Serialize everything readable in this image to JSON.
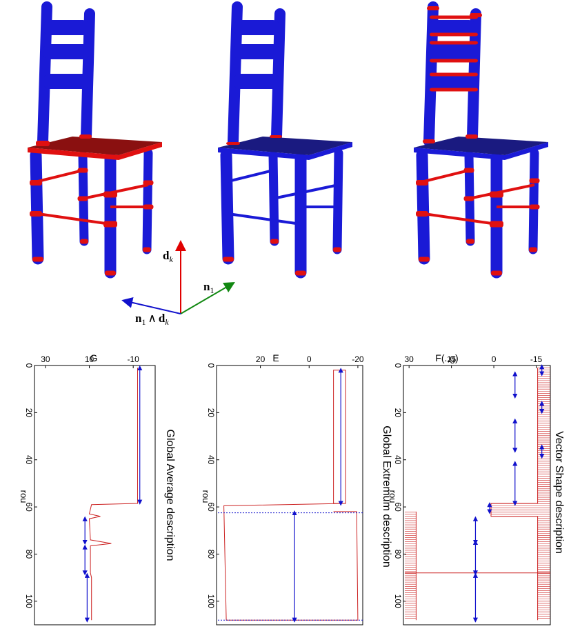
{
  "axis_labels": {
    "d": "d",
    "d_sub": "k",
    "n": "n",
    "n_sub": "1",
    "wedge": "n",
    "wedge_sub": "1",
    "wedge_op": "∧",
    "wedge_d": "d",
    "wedge_d_sub": "k"
  },
  "colors": {
    "chair_blue": "#1a1ad6",
    "chair_red": "#e01010",
    "seat_red": "#8a1010",
    "seat_blue": "#1a1a80",
    "axis_red": "#e00000",
    "axis_green": "#118811",
    "axis_blue": "#1111cc",
    "plot_red": "#cc2222",
    "plot_blue": "#1111cc"
  },
  "chart_data": [
    {
      "type": "line",
      "title": "Vector Shape description",
      "xlabel": "rou",
      "ylabel": "F(.,g)",
      "xticks": [
        "0",
        "20",
        "40",
        "60",
        "80",
        "100"
      ],
      "yticks": [
        "-15",
        "0",
        "15",
        "30"
      ],
      "xlim": [
        0,
        110
      ],
      "ylim": [
        -20,
        32
      ]
    },
    {
      "type": "line",
      "title": "Global Extremum description",
      "xlabel": "rou",
      "ylabel": "E",
      "xticks": [
        "0",
        "20",
        "40",
        "60",
        "80",
        "100"
      ],
      "yticks": [
        "-20",
        "0",
        "20"
      ],
      "xlim": [
        0,
        110
      ],
      "ylim": [
        -22,
        38
      ]
    },
    {
      "type": "line",
      "title": "Global Average description",
      "xlabel": "rou",
      "ylabel": "G",
      "xticks": [
        "0",
        "20",
        "40",
        "60",
        "80",
        "100"
      ],
      "yticks": [
        "-10",
        "10",
        "30"
      ],
      "xlim": [
        0,
        110
      ],
      "ylim": [
        -20,
        35
      ]
    }
  ]
}
